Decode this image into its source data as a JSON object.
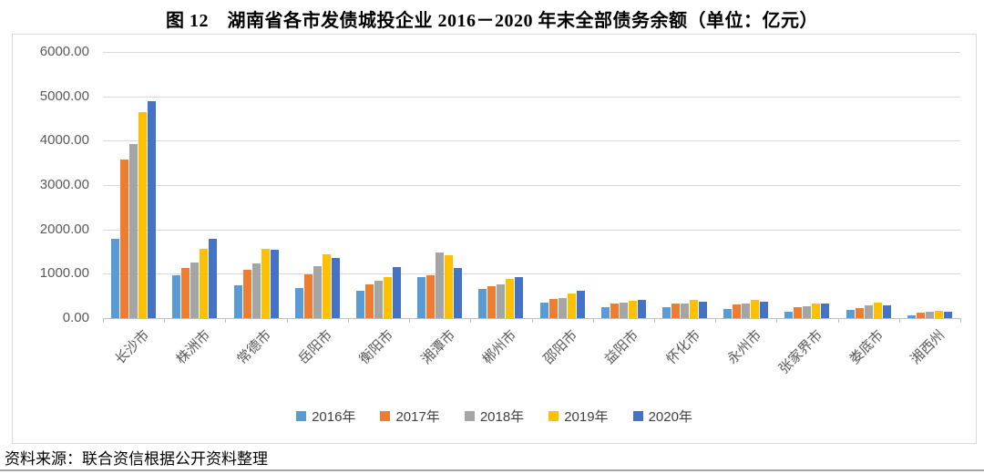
{
  "title": "图 12　湖南省各市发债城投企业 2016－2020 年末全部债务余额（单位：亿元）",
  "source_note": "资料来源：联合资信根据公开资料整理",
  "chart_data": {
    "type": "bar",
    "title": "图 12　湖南省各市发债城投企业 2016－2020 年末全部债务余额（单位：亿元）",
    "unit": "亿元",
    "categories": [
      "长沙市",
      "株洲市",
      "常德市",
      "岳阳市",
      "衡阳市",
      "湘潭市",
      "郴州市",
      "邵阳市",
      "益阳市",
      "怀化市",
      "永州市",
      "张家界市",
      "娄底市",
      "湘西州"
    ],
    "series": [
      {
        "name": "2016年",
        "color": "#5B9BD5",
        "values": [
          1780,
          970,
          750,
          670,
          610,
          930,
          660,
          340,
          250,
          250,
          215,
          150,
          190,
          70
        ]
      },
      {
        "name": "2017年",
        "color": "#ED7D31",
        "values": [
          3580,
          1130,
          1080,
          990,
          770,
          960,
          720,
          440,
          320,
          335,
          315,
          240,
          220,
          130
        ]
      },
      {
        "name": "2018年",
        "color": "#A5A5A5",
        "values": [
          3930,
          1260,
          1230,
          1180,
          840,
          1470,
          760,
          460,
          350,
          320,
          335,
          270,
          280,
          150
        ]
      },
      {
        "name": "2019年",
        "color": "#FFC000",
        "values": [
          4650,
          1570,
          1560,
          1430,
          930,
          1420,
          890,
          560,
          400,
          405,
          420,
          330,
          340,
          170
        ]
      },
      {
        "name": "2020年",
        "color": "#4472C4",
        "values": [
          4900,
          1790,
          1550,
          1360,
          1150,
          1140,
          915,
          610,
          420,
          380,
          375,
          320,
          295,
          150
        ]
      }
    ],
    "ylim": [
      0,
      6000
    ],
    "ytick_step": 1000,
    "yticks": [
      "6000.00",
      "5000.00",
      "4000.00",
      "3000.00",
      "2000.00",
      "1000.00",
      "0.00"
    ],
    "xlabel": "",
    "ylabel": "",
    "grid": true,
    "legend_position": "bottom",
    "legend_entries": [
      "2016年",
      "2017年",
      "2018年",
      "2019年",
      "2020年"
    ]
  }
}
